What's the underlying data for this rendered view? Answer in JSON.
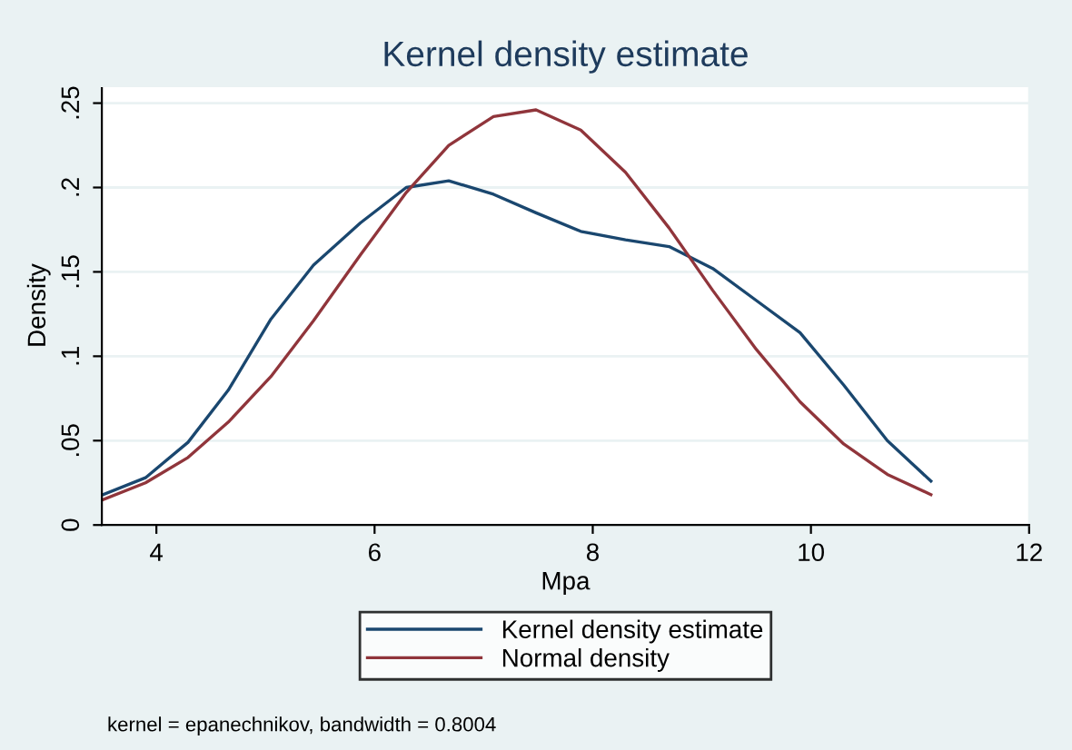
{
  "chart_data": {
    "type": "line",
    "title": "Kernel density estimate",
    "xlabel": "Mpa",
    "ylabel": "Density",
    "xlim": [
      3.5,
      12
    ],
    "xticks": [
      4,
      6,
      8,
      10,
      12
    ],
    "ylim": [
      0,
      0.26
    ],
    "yticks": [
      {
        "value": 0,
        "label": "0"
      },
      {
        "value": 0.05,
        "label": ".05"
      },
      {
        "value": 0.1,
        "label": ".1"
      },
      {
        "value": 0.15,
        "label": ".15"
      },
      {
        "value": 0.2,
        "label": ".2"
      },
      {
        "value": 0.25,
        "label": ".25"
      }
    ],
    "grid": "y",
    "legend": "bottom",
    "marker": "none",
    "line_style": "solid",
    "x": [
      3.51,
      3.9,
      4.29,
      4.66,
      5.05,
      5.44,
      5.87,
      6.29,
      6.68,
      7.09,
      7.48,
      7.89,
      8.3,
      8.7,
      9.1,
      9.5,
      9.9,
      10.3,
      10.7,
      11.1
    ],
    "series": [
      {
        "name": "Kernel density estimate",
        "color": "#1a476f",
        "values": [
          0.018,
          0.028,
          0.049,
          0.08,
          0.122,
          0.154,
          0.179,
          0.2,
          0.204,
          0.196,
          0.185,
          0.174,
          0.169,
          0.165,
          0.152,
          0.133,
          0.114,
          0.083,
          0.05,
          0.026
        ]
      },
      {
        "name": "Normal density",
        "color": "#90353b",
        "values": [
          0.015,
          0.025,
          0.04,
          0.061,
          0.088,
          0.121,
          0.16,
          0.197,
          0.225,
          0.242,
          0.246,
          0.234,
          0.209,
          0.176,
          0.139,
          0.104,
          0.073,
          0.048,
          0.03,
          0.018
        ]
      }
    ],
    "annotations": [
      "kernel = epanechnikov, bandwidth = 0.8004"
    ]
  }
}
